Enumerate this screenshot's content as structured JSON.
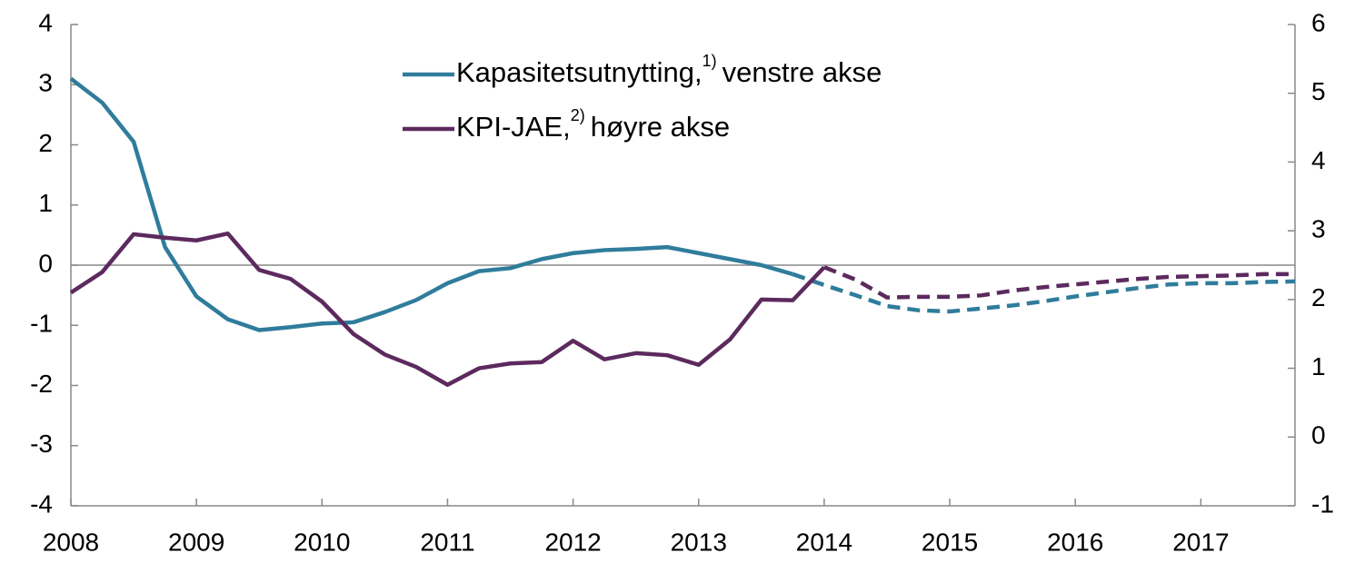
{
  "chart_data": {
    "type": "line",
    "x": [
      2008,
      2008.25,
      2008.5,
      2008.75,
      2009,
      2009.25,
      2009.5,
      2009.75,
      2010,
      2010.25,
      2010.5,
      2010.75,
      2011,
      2011.25,
      2011.5,
      2011.75,
      2012,
      2012.25,
      2012.5,
      2012.75,
      2013,
      2013.25,
      2013.5,
      2013.75,
      2014,
      2014.25,
      2014.5,
      2014.75,
      2015,
      2015.25,
      2015.5,
      2015.75,
      2016,
      2016.25,
      2016.5,
      2016.75,
      2017,
      2017.25,
      2017.5,
      2017.75
    ],
    "xlim": [
      2008,
      2017.75
    ],
    "xticks": [
      2008,
      2009,
      2010,
      2011,
      2012,
      2013,
      2014,
      2015,
      2016,
      2017
    ],
    "ylim": [
      -4,
      4
    ],
    "yticks": [
      -4,
      -3,
      -2,
      -1,
      0,
      1,
      2,
      3,
      4
    ],
    "y2lim": [
      -1,
      6
    ],
    "y2ticks": [
      -1,
      0,
      1,
      2,
      3,
      4,
      5,
      6
    ],
    "series": [
      {
        "name": "Kapasitetsutnytting,",
        "footnote": "1)",
        "axis_label": "venstre akse",
        "color": "#2f7c9b",
        "dashed_from": 2013.75,
        "values": [
          3.1,
          2.7,
          2.05,
          0.3,
          -0.52,
          -0.9,
          -1.08,
          -1.03,
          -0.97,
          -0.95,
          -0.78,
          -0.58,
          -0.3,
          -0.1,
          -0.05,
          0.1,
          0.2,
          0.25,
          0.27,
          0.3,
          0.2,
          0.1,
          0,
          -0.15,
          -0.33,
          -0.5,
          -0.68,
          -0.75,
          -0.77,
          -0.72,
          -0.67,
          -0.6,
          -0.52,
          -0.45,
          -0.38,
          -0.32,
          -0.3,
          -0.3,
          -0.28,
          -0.27
        ]
      },
      {
        "name": "KPI-JAE,",
        "footnote": "2)",
        "axis_label": "høyre akse",
        "color": "#5c2a5e",
        "axis": "y2",
        "dashed_from": 2014,
        "values": [
          2.1,
          2.4,
          2.95,
          2.9,
          2.86,
          2.96,
          2.43,
          2.3,
          1.97,
          1.5,
          1.2,
          1.02,
          0.76,
          1.0,
          1.07,
          1.09,
          1.4,
          1.13,
          1.22,
          1.19,
          1.05,
          1.42,
          2.0,
          1.99,
          2.47,
          2.29,
          2.03,
          2.04,
          2.04,
          2.06,
          2.13,
          2.18,
          2.22,
          2.26,
          2.3,
          2.33,
          2.34,
          2.35,
          2.37,
          2.37
        ]
      }
    ]
  }
}
